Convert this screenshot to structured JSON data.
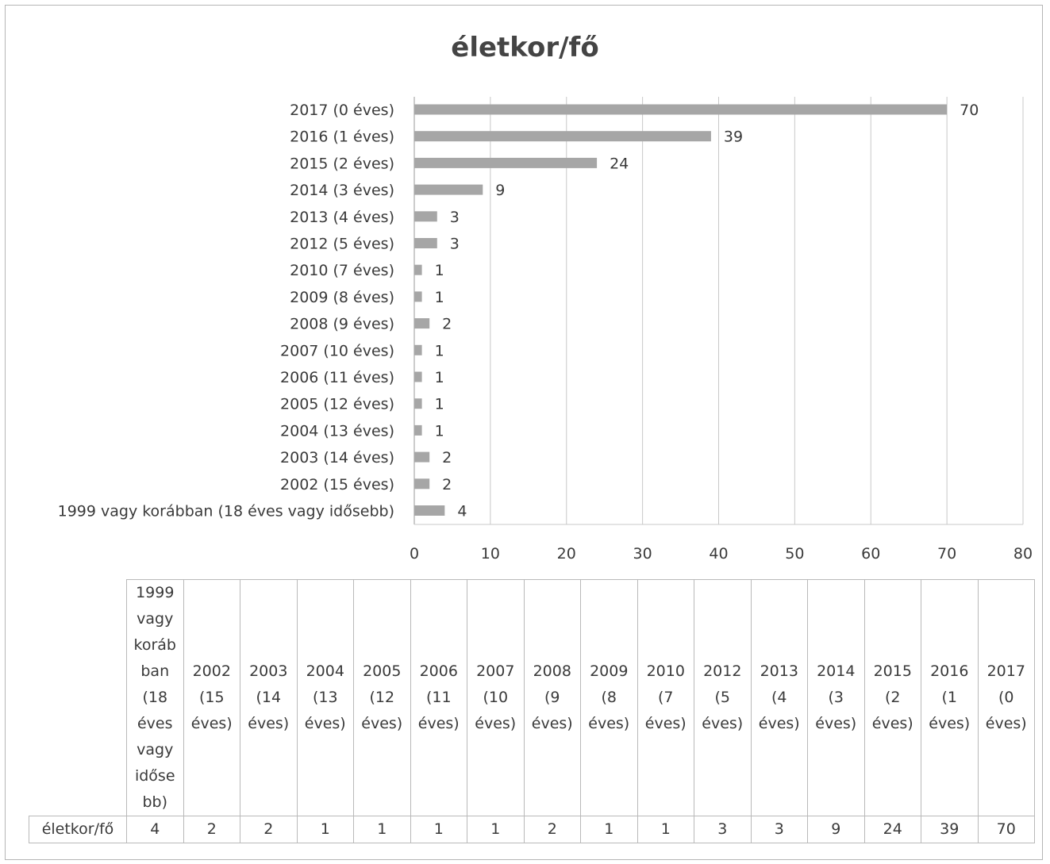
{
  "chart_data": {
    "type": "bar",
    "orientation": "horizontal",
    "title": "életkor/fő",
    "categories": [
      "2017 (0 éves)",
      "2016 (1 éves)",
      "2015 (2 éves)",
      "2014 (3 éves)",
      "2013 (4 éves)",
      "2012 (5 éves)",
      "2010 (7 éves)",
      "2009 (8 éves)",
      "2008 (9 éves)",
      "2007 (10 éves)",
      "2006 (11 éves)",
      "2005 (12 éves)",
      "2004 (13 éves)",
      "2003 (14 éves)",
      "2002 (15 éves)",
      "1999 vagy korábban (18 éves vagy idősebb)"
    ],
    "series": [
      {
        "values": [
          70,
          39,
          24,
          9,
          3,
          3,
          1,
          1,
          2,
          1,
          1,
          1,
          1,
          2,
          2,
          4
        ]
      }
    ],
    "xlim": [
      0,
      80
    ],
    "xticks": [
      0,
      10,
      20,
      30,
      40,
      50,
      60,
      70,
      80
    ],
    "grid": true,
    "bar_color": "#a6a6a6",
    "data_labels": true
  },
  "data_table": {
    "row_label": "életkor/fő",
    "columns": [
      "1999 vagy koráb ban (18 éves vagy időse bb)",
      "2002 (15 éves)",
      "2003 (14 éves)",
      "2004 (13 éves)",
      "2005 (12 éves)",
      "2006 (11 éves)",
      "2007 (10 éves)",
      "2008 (9 éves)",
      "2009 (8 éves)",
      "2010 (7 éves)",
      "2012 (5 éves)",
      "2013 (4 éves)",
      "2014 (3 éves)",
      "2015 (2 éves)",
      "2016 (1 éves)",
      "2017 (0 éves)"
    ],
    "column_lines": [
      [
        "1999",
        "vagy",
        "koráb",
        "ban",
        "(18",
        "éves",
        "vagy",
        "idős­e",
        "bb)"
      ],
      [
        "2002",
        "(15",
        "éves)"
      ],
      [
        "2003",
        "(14",
        "éves)"
      ],
      [
        "2004",
        "(13",
        "éves)"
      ],
      [
        "2005",
        "(12",
        "éves)"
      ],
      [
        "2006",
        "(11",
        "éves)"
      ],
      [
        "2007",
        "(10",
        "éves)"
      ],
      [
        "2008",
        "(9",
        "éves)"
      ],
      [
        "2009",
        "(8",
        "éves)"
      ],
      [
        "2010",
        "(7",
        "éves)"
      ],
      [
        "2012",
        "(5",
        "éves)"
      ],
      [
        "2013",
        "(4",
        "éves)"
      ],
      [
        "2014",
        "(3",
        "éves)"
      ],
      [
        "2015",
        "(2",
        "éves)"
      ],
      [
        "2016",
        "(1",
        "éves)"
      ],
      [
        "2017",
        "(0",
        "éves)"
      ]
    ],
    "values": [
      4,
      2,
      2,
      1,
      1,
      1,
      1,
      2,
      1,
      1,
      3,
      3,
      9,
      24,
      39,
      70
    ]
  }
}
